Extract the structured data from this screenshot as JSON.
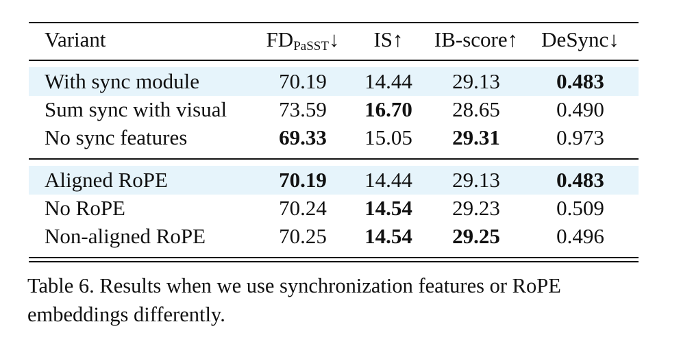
{
  "table": {
    "header": {
      "variant": "Variant",
      "fd_main": "FD",
      "fd_sub": "PaSST",
      "fd_arrow": "↓",
      "is": "IS↑",
      "ib": "IB-score↑",
      "desync": "DeSync↓"
    },
    "group1": [
      {
        "variant": "With sync module",
        "fd": "70.19",
        "is": "14.44",
        "ib": "29.13",
        "desync": "0.483"
      },
      {
        "variant": "Sum sync with visual",
        "fd": "73.59",
        "is": "16.70",
        "ib": "28.65",
        "desync": "0.490"
      },
      {
        "variant": "No sync features",
        "fd": "69.33",
        "is": "15.05",
        "ib": "29.31",
        "desync": "0.973"
      }
    ],
    "group2": [
      {
        "variant": "Aligned RoPE",
        "fd": "70.19",
        "is": "14.44",
        "ib": "29.13",
        "desync": "0.483"
      },
      {
        "variant": "No RoPE",
        "fd": "70.24",
        "is": "14.54",
        "ib": "29.23",
        "desync": "0.509"
      },
      {
        "variant": "Non-aligned RoPE",
        "fd": "70.25",
        "is": "14.54",
        "ib": "29.25",
        "desync": "0.496"
      }
    ],
    "highlight_color": "#e6f4fb"
  },
  "caption": {
    "line1": "Table 6. Results when we use synchronization features or RoPE",
    "line2": "embeddings differently."
  }
}
